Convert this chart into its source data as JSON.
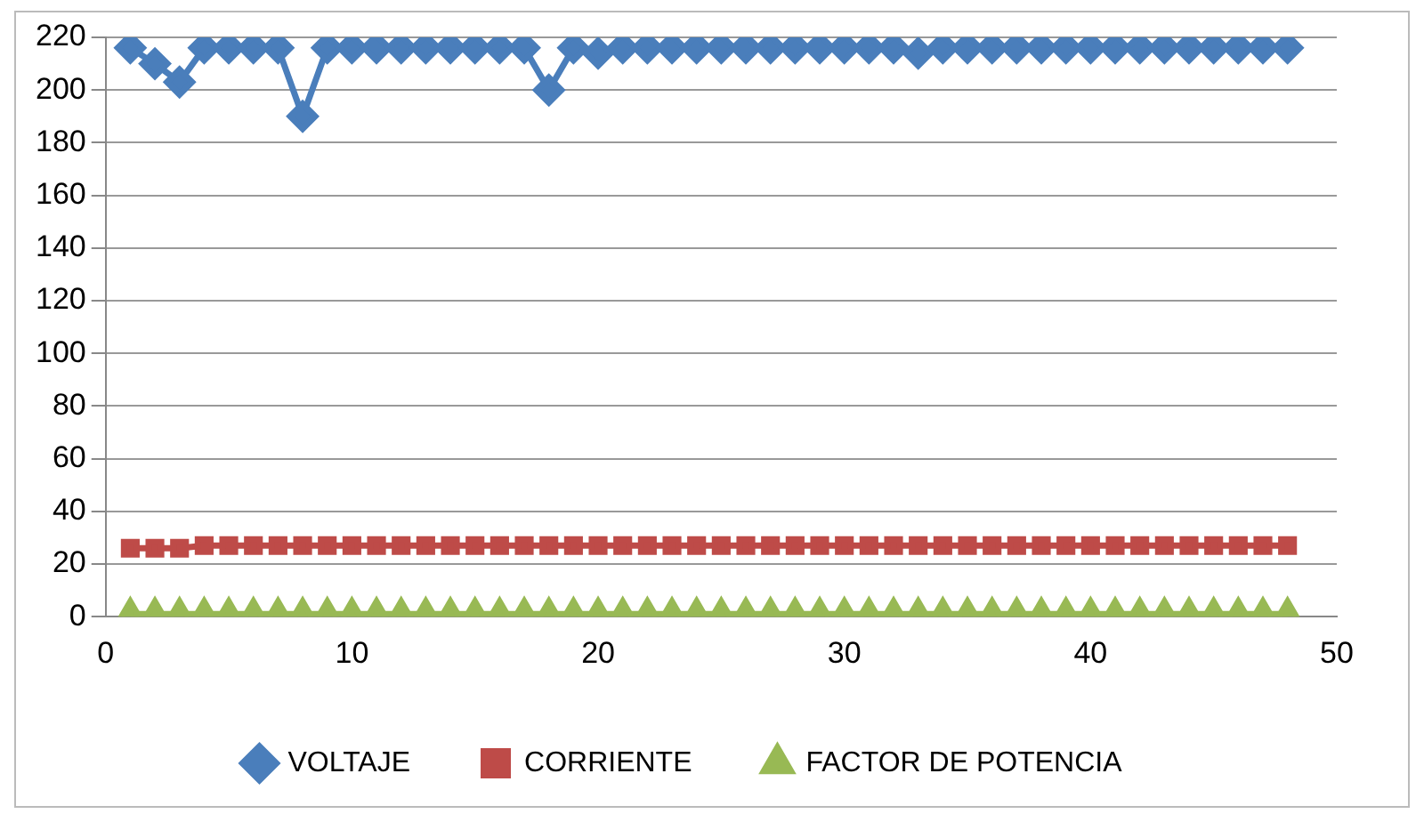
{
  "chart_data": {
    "type": "line",
    "x": [
      1,
      2,
      3,
      4,
      5,
      6,
      7,
      8,
      9,
      10,
      11,
      12,
      13,
      14,
      15,
      16,
      17,
      18,
      19,
      20,
      21,
      22,
      23,
      24,
      25,
      26,
      27,
      28,
      29,
      30,
      31,
      32,
      33,
      34,
      35,
      36,
      37,
      38,
      39,
      40,
      41,
      42,
      43,
      44,
      45,
      46,
      47,
      48
    ],
    "series": [
      {
        "name": "VOLTAJE",
        "color": "#4a7ebb",
        "marker": "diamond",
        "values": [
          216,
          210,
          203,
          216,
          216,
          216,
          216,
          190,
          216,
          216,
          216,
          216,
          216,
          216,
          216,
          216,
          216,
          200,
          216,
          214,
          216,
          216,
          216,
          216,
          216,
          216,
          216,
          216,
          216,
          216,
          216,
          216,
          214,
          216,
          216,
          216,
          216,
          216,
          216,
          216,
          216,
          216,
          216,
          216,
          216,
          216,
          216,
          216
        ]
      },
      {
        "name": "CORRIENTE",
        "color": "#be4b48",
        "marker": "square",
        "values": [
          26,
          26,
          26,
          27,
          27,
          27,
          27,
          27,
          27,
          27,
          27,
          27,
          27,
          27,
          27,
          27,
          27,
          27,
          27,
          27,
          27,
          27,
          27,
          27,
          27,
          27,
          27,
          27,
          27,
          27,
          27,
          27,
          27,
          27,
          27,
          27,
          27,
          27,
          27,
          27,
          27,
          27,
          27,
          27,
          27,
          27,
          27,
          27
        ]
      },
      {
        "name": "FACTOR DE POTENCIA",
        "color": "#98b954",
        "marker": "triangle",
        "values": [
          1,
          1,
          1,
          1,
          1,
          1,
          1,
          1,
          1,
          1,
          1,
          1,
          1,
          1,
          1,
          1,
          1,
          1,
          1,
          1,
          1,
          1,
          1,
          1,
          1,
          1,
          1,
          1,
          1,
          1,
          1,
          1,
          1,
          1,
          1,
          1,
          1,
          1,
          1,
          1,
          1,
          1,
          1,
          1,
          1,
          1,
          1,
          1
        ]
      }
    ],
    "xlim": [
      0,
      50
    ],
    "xticks": [
      0,
      10,
      20,
      30,
      40,
      50
    ],
    "ylim": [
      0,
      220
    ],
    "yticks": [
      0,
      20,
      40,
      60,
      80,
      100,
      120,
      140,
      160,
      180,
      200,
      220
    ],
    "grid": "y",
    "legend": "bottom",
    "line_style": "solid"
  }
}
